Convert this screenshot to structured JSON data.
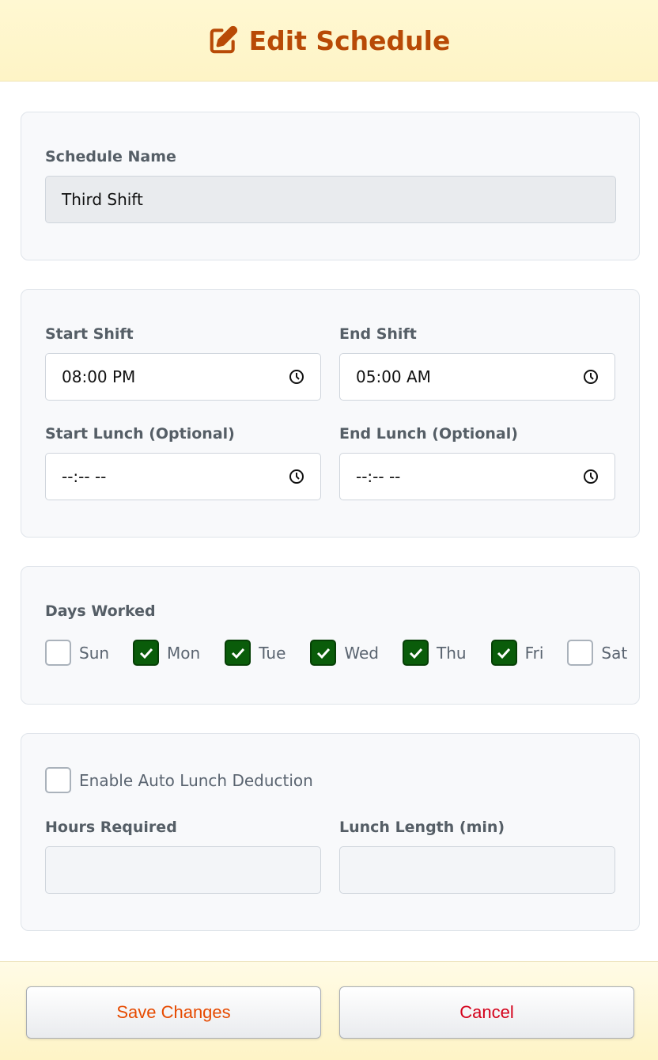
{
  "header": {
    "title": "Edit Schedule",
    "icon": "edit-icon",
    "color": "#b84a06"
  },
  "name_section": {
    "label": "Schedule Name",
    "value": "Third Shift"
  },
  "times": {
    "start_shift": {
      "label": "Start Shift",
      "value": "08:00 PM"
    },
    "end_shift": {
      "label": "End Shift",
      "value": "05:00 AM"
    },
    "start_lunch": {
      "label": "Start Lunch (Optional)",
      "value": "--:-- --"
    },
    "end_lunch": {
      "label": "End Lunch (Optional)",
      "value": "--:-- --"
    }
  },
  "days": {
    "label": "Days Worked",
    "items": [
      {
        "label": "Sun",
        "checked": false
      },
      {
        "label": "Mon",
        "checked": true
      },
      {
        "label": "Tue",
        "checked": true
      },
      {
        "label": "Wed",
        "checked": true
      },
      {
        "label": "Thu",
        "checked": true
      },
      {
        "label": "Fri",
        "checked": true
      },
      {
        "label": "Sat",
        "checked": false
      }
    ]
  },
  "auto_lunch": {
    "label": "Enable Auto Lunch Deduction",
    "checked": false,
    "hours_required": {
      "label": "Hours Required",
      "value": ""
    },
    "lunch_length": {
      "label": "Lunch Length (min)",
      "value": ""
    }
  },
  "footer": {
    "save_label": "Save Changes",
    "cancel_label": "Cancel",
    "save_color": "#e64a00",
    "cancel_color": "#d4001a"
  }
}
